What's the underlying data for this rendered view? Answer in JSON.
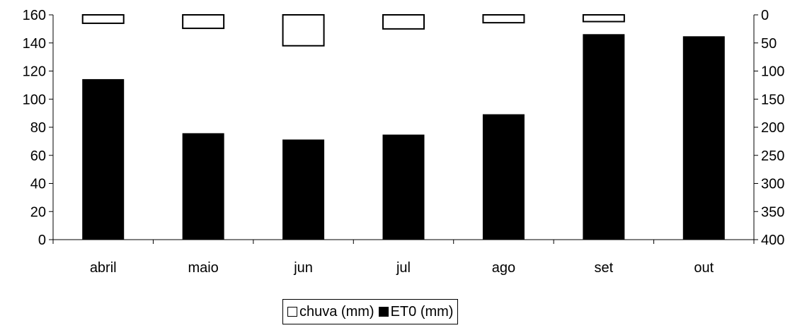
{
  "chart_data": {
    "type": "bar",
    "categories": [
      "abril",
      "maio",
      "jun",
      "jul",
      "ago",
      "set",
      "out"
    ],
    "series": [
      {
        "name": "chuva (mm)",
        "axis": "right",
        "axis_reversed": true,
        "color": "#ffffff",
        "stroke": "#000000",
        "values": [
          15,
          24,
          55,
          25,
          14,
          12,
          0
        ]
      },
      {
        "name": "ET0 (mm)",
        "axis": "left",
        "color": "#000000",
        "values": [
          114,
          75.5,
          71,
          74.5,
          89,
          146,
          144.5
        ]
      }
    ],
    "y_left": {
      "ylim": [
        0,
        160
      ],
      "ticks": [
        "0",
        "20",
        "40",
        "60",
        "80",
        "100",
        "120",
        "140",
        "160"
      ]
    },
    "y_right": {
      "ylim": [
        0,
        400
      ],
      "reversed": true,
      "ticks": [
        "0",
        "50",
        "100",
        "150",
        "200",
        "250",
        "300",
        "350",
        "400"
      ]
    },
    "legend": {
      "placement": "bottom-center"
    },
    "grid": false
  }
}
